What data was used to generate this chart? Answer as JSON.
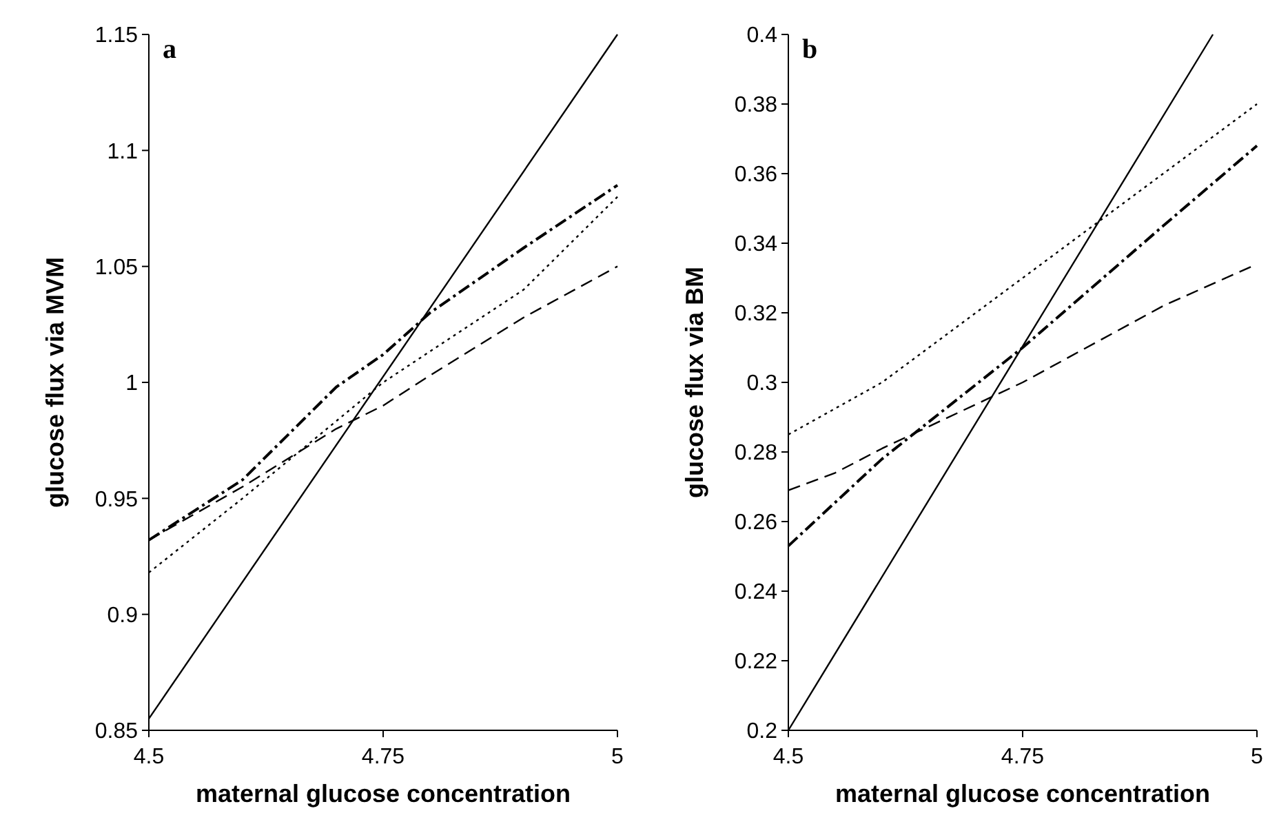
{
  "chart_data": [
    {
      "type": "line",
      "title": "a",
      "xlabel": "maternal glucose concentration",
      "ylabel": "glucose flux via MVM",
      "xlim": [
        4.5,
        5
      ],
      "xticks": [
        4.5,
        4.75,
        5
      ],
      "ylim": [
        0.85,
        1.15
      ],
      "yticks": [
        0.85,
        0.9,
        0.95,
        1,
        1.05,
        1.1,
        1.15
      ],
      "series": [
        {
          "color": "#000000",
          "line_style": "solid",
          "x": [
            4.5,
            5
          ],
          "values": [
            0.855,
            1.15
          ]
        },
        {
          "color": "#000000",
          "line_style": "dashed",
          "x": [
            4.5,
            4.6,
            4.7,
            4.75,
            4.8,
            4.9,
            5
          ],
          "values": [
            0.932,
            0.955,
            0.98,
            0.99,
            1.003,
            1.028,
            1.05
          ]
        },
        {
          "color": "#000000",
          "line_style": "dotted",
          "x": [
            4.5,
            4.6,
            4.75,
            4.9,
            5
          ],
          "values": [
            0.918,
            0.95,
            1.0,
            1.04,
            1.08
          ]
        },
        {
          "color": "#000000",
          "line_style": "dashdot",
          "x": [
            4.5,
            4.6,
            4.7,
            4.75,
            4.8,
            4.9,
            5
          ],
          "values": [
            0.932,
            0.958,
            0.998,
            1.012,
            1.03,
            1.058,
            1.085
          ]
        }
      ]
    },
    {
      "type": "line",
      "title": "b",
      "xlabel": "maternal glucose concentration",
      "ylabel": "glucose flux via BM",
      "xlim": [
        4.5,
        5
      ],
      "xticks": [
        4.5,
        4.75,
        5
      ],
      "ylim": [
        0.2,
        0.4
      ],
      "yticks": [
        0.2,
        0.22,
        0.24,
        0.26,
        0.28,
        0.3,
        0.32,
        0.34,
        0.36,
        0.38,
        0.4
      ],
      "series": [
        {
          "color": "#000000",
          "line_style": "solid",
          "x": [
            4.5,
            4.953
          ],
          "values": [
            0.2,
            0.4
          ]
        },
        {
          "color": "#000000",
          "line_style": "dashed",
          "x": [
            4.5,
            4.55,
            4.6,
            4.75,
            4.9,
            5
          ],
          "values": [
            0.269,
            0.274,
            0.281,
            0.3,
            0.322,
            0.334
          ]
        },
        {
          "color": "#000000",
          "line_style": "dotted",
          "x": [
            4.5,
            4.6,
            4.75,
            4.9,
            5
          ],
          "values": [
            0.285,
            0.3,
            0.33,
            0.36,
            0.38
          ]
        },
        {
          "color": "#000000",
          "line_style": "dashdot",
          "x": [
            4.5,
            4.6,
            4.75,
            4.9,
            5
          ],
          "values": [
            0.253,
            0.278,
            0.31,
            0.345,
            0.368
          ]
        }
      ]
    }
  ]
}
